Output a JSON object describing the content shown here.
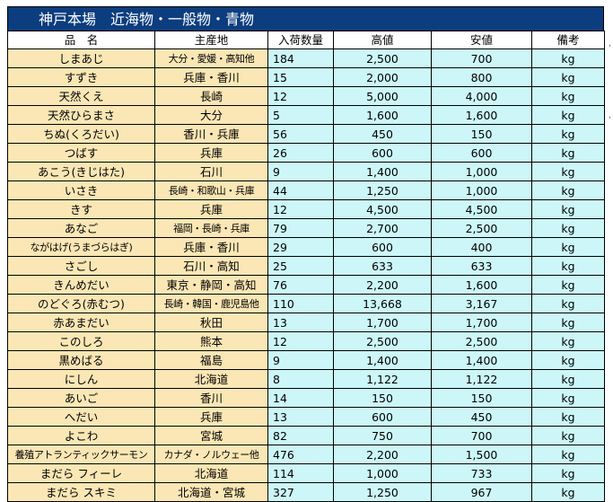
{
  "sheet": {
    "title": "神戸本場　近海物・一般物・青物",
    "headers": [
      "品　名",
      "主産地",
      "入荷数量",
      "高値",
      "安値",
      "備考"
    ],
    "rows": [
      {
        "name": "しまあじ",
        "origin": "大分・愛媛・高知他",
        "qty": "184",
        "high": "2,500",
        "low": "700",
        "unit": "kg"
      },
      {
        "name": "すずき",
        "origin": "兵庫・香川",
        "qty": "15",
        "high": "2,000",
        "low": "800",
        "unit": "kg"
      },
      {
        "name": "天然くえ",
        "origin": "長崎",
        "qty": "12",
        "high": "5,000",
        "low": "4,000",
        "unit": "kg"
      },
      {
        "name": "天然ひらまさ",
        "origin": "大分",
        "qty": "5",
        "high": "1,600",
        "low": "1,600",
        "unit": "kg"
      },
      {
        "name": "ちぬ(くろだい)",
        "origin": "香川・兵庫",
        "qty": "56",
        "high": "450",
        "low": "150",
        "unit": "kg"
      },
      {
        "name": "つばす",
        "origin": "兵庫",
        "qty": "26",
        "high": "600",
        "low": "600",
        "unit": "kg"
      },
      {
        "name": "あこう(きじはた)",
        "origin": "石川",
        "qty": "9",
        "high": "1,400",
        "low": "1,000",
        "unit": "kg"
      },
      {
        "name": "いさき",
        "origin": "長崎・和歌山・兵庫",
        "qty": "44",
        "high": "1,250",
        "low": "1,000",
        "unit": "kg"
      },
      {
        "name": "きす",
        "origin": "兵庫",
        "qty": "12",
        "high": "4,500",
        "low": "4,500",
        "unit": "kg"
      },
      {
        "name": "あなご",
        "origin": "福岡・長崎・兵庫",
        "qty": "79",
        "high": "2,700",
        "low": "2,500",
        "unit": "kg"
      },
      {
        "name": "ながはげ(うまづらはぎ)",
        "origin": "兵庫・香川",
        "qty": "29",
        "high": "600",
        "low": "400",
        "unit": "kg"
      },
      {
        "name": "さごし",
        "origin": "石川・高知",
        "qty": "25",
        "high": "633",
        "low": "633",
        "unit": "kg"
      },
      {
        "name": "きんめだい",
        "origin": "東京・静岡・高知",
        "qty": "76",
        "high": "2,200",
        "low": "1,600",
        "unit": "kg"
      },
      {
        "name": "のどぐろ(赤むつ)",
        "origin": "長崎・韓国・鹿児島他",
        "qty": "110",
        "high": "13,668",
        "low": "3,167",
        "unit": "kg"
      },
      {
        "name": "赤あまだい",
        "origin": "秋田",
        "qty": "13",
        "high": "1,700",
        "low": "1,700",
        "unit": "kg"
      },
      {
        "name": "このしろ",
        "origin": "熊本",
        "qty": "12",
        "high": "2,500",
        "low": "2,500",
        "unit": "kg"
      },
      {
        "name": "黒めばる",
        "origin": "福島",
        "qty": "9",
        "high": "1,400",
        "low": "1,400",
        "unit": "kg"
      },
      {
        "name": "にしん",
        "origin": "北海道",
        "qty": "8",
        "high": "1,122",
        "low": "1,122",
        "unit": "kg"
      },
      {
        "name": "あいご",
        "origin": "香川",
        "qty": "14",
        "high": "150",
        "low": "150",
        "unit": "kg"
      },
      {
        "name": "へだい",
        "origin": "兵庫",
        "qty": "13",
        "high": "600",
        "low": "450",
        "unit": "kg"
      },
      {
        "name": "よこわ",
        "origin": "宮城",
        "qty": "82",
        "high": "750",
        "low": "700",
        "unit": "kg"
      },
      {
        "name": "養殖アトランティックサーモン",
        "origin": "カナダ・ノルウェー他",
        "qty": "476",
        "high": "2,200",
        "low": "1,500",
        "unit": "kg"
      },
      {
        "name": "まだら フィーレ",
        "origin": "北海道",
        "qty": "114",
        "high": "1,000",
        "low": "733",
        "unit": "kg"
      },
      {
        "name": "まだら スキミ",
        "origin": "北海道・宮城",
        "qty": "327",
        "high": "1,250",
        "low": "967",
        "unit": "kg"
      }
    ],
    "stray_marks": [
      ",",
      ","
    ]
  }
}
